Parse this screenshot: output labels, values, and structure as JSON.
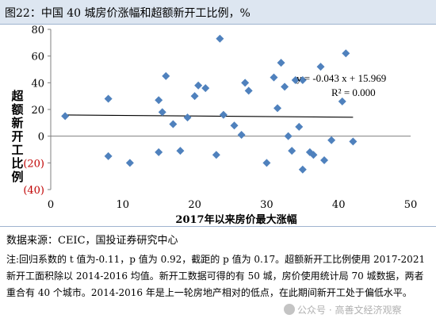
{
  "title": "图22：中国 40 城房价涨幅和超额新开工比例，%",
  "source": "数据来源：CEIC，国投证券研究中心",
  "note": "注:回归系数的 t 值为-0.11，p 值为 0.92，截距的 p 值为 0.17。超额新开工比例使用 2017-2021 新开工面积除以 2014-2016 均值。新开工数据可得的有 50 城，房价使用统计局 70 城数据，两者重合有 40 个城市。2014-2016 年是上一轮房地产相对的低点，在此期间新开工处于偏低水平。",
  "watermark": "公众号 · 高善文经济观察",
  "colors": {
    "points": "#4f81bd",
    "negative_tick": "#c00000",
    "title_bg": "#dde6f1",
    "trendline": "#000000"
  },
  "chart_data": {
    "type": "scatter",
    "xlabel": "2017年以来房价最大涨幅",
    "ylabel": "超额新开工比例",
    "xlim": [
      0,
      50
    ],
    "ylim": [
      -40,
      80
    ],
    "x_ticks": [
      "0",
      "10",
      "20",
      "30",
      "40",
      "50"
    ],
    "y_ticks": [
      "80",
      "60",
      "40",
      "20",
      "0",
      "(20)",
      "(40)"
    ],
    "trendline": {
      "slope": -0.043,
      "intercept": 15.969,
      "x_range": [
        2,
        42
      ]
    },
    "annotations": [
      "y = -0.043 x + 15.969",
      "R² = 0.000"
    ],
    "x": [
      2,
      8,
      8,
      11,
      15,
      15,
      15.5,
      16,
      17,
      18,
      19,
      20,
      20.5,
      21.5,
      23,
      23.5,
      24,
      25.5,
      26.5,
      27,
      27.5,
      30,
      31,
      31.5,
      32,
      32.5,
      33,
      33.5,
      34,
      34.5,
      35,
      35,
      36,
      36.5,
      37.5,
      38,
      39,
      40.5,
      41,
      42
    ],
    "y": [
      15,
      28,
      -15,
      -20,
      27,
      -12,
      18,
      45,
      9,
      -11,
      14,
      30,
      38,
      36,
      -14,
      73,
      16,
      8,
      1,
      40,
      34,
      -20,
      44,
      21,
      55,
      37,
      0,
      -11,
      42,
      7,
      -25,
      42,
      -12,
      -14,
      52,
      -18,
      -3,
      26,
      62,
      -4
    ]
  }
}
